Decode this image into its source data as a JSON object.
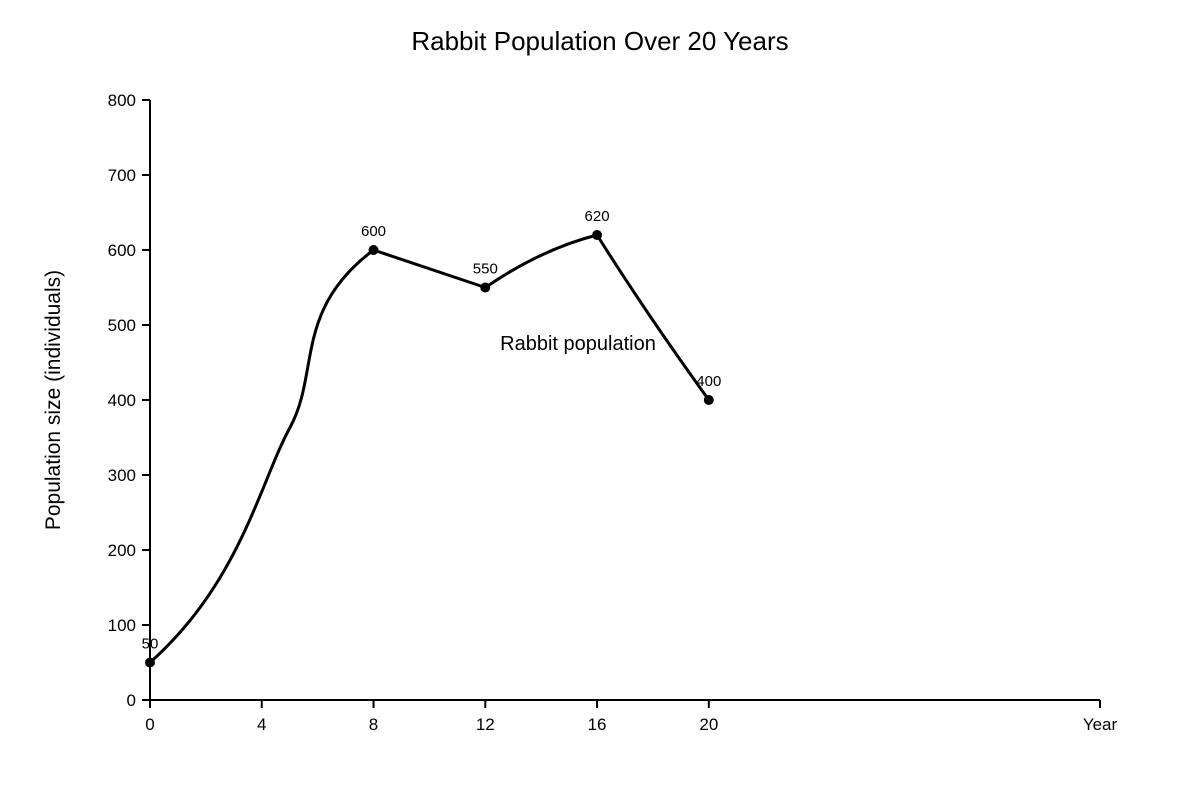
{
  "chart_data": {
    "type": "line",
    "title": "Rabbit Population Over 20 Years",
    "xlabel": "Year",
    "ylabel": "Population size (individuals)",
    "xlim": [
      0,
      34
    ],
    "ylim": [
      0,
      800
    ],
    "x_ticks": [
      0,
      4,
      8,
      12,
      16,
      20
    ],
    "y_ticks": [
      0,
      100,
      200,
      300,
      400,
      500,
      600,
      700,
      800
    ],
    "grid": false,
    "series": [
      {
        "name": "Rabbit population",
        "x": [
          0,
          8,
          12,
          16,
          20
        ],
        "values": [
          50,
          600,
          550,
          620,
          400
        ],
        "data_labels": [
          "50",
          "600",
          "550",
          "620",
          "400"
        ]
      }
    ]
  }
}
